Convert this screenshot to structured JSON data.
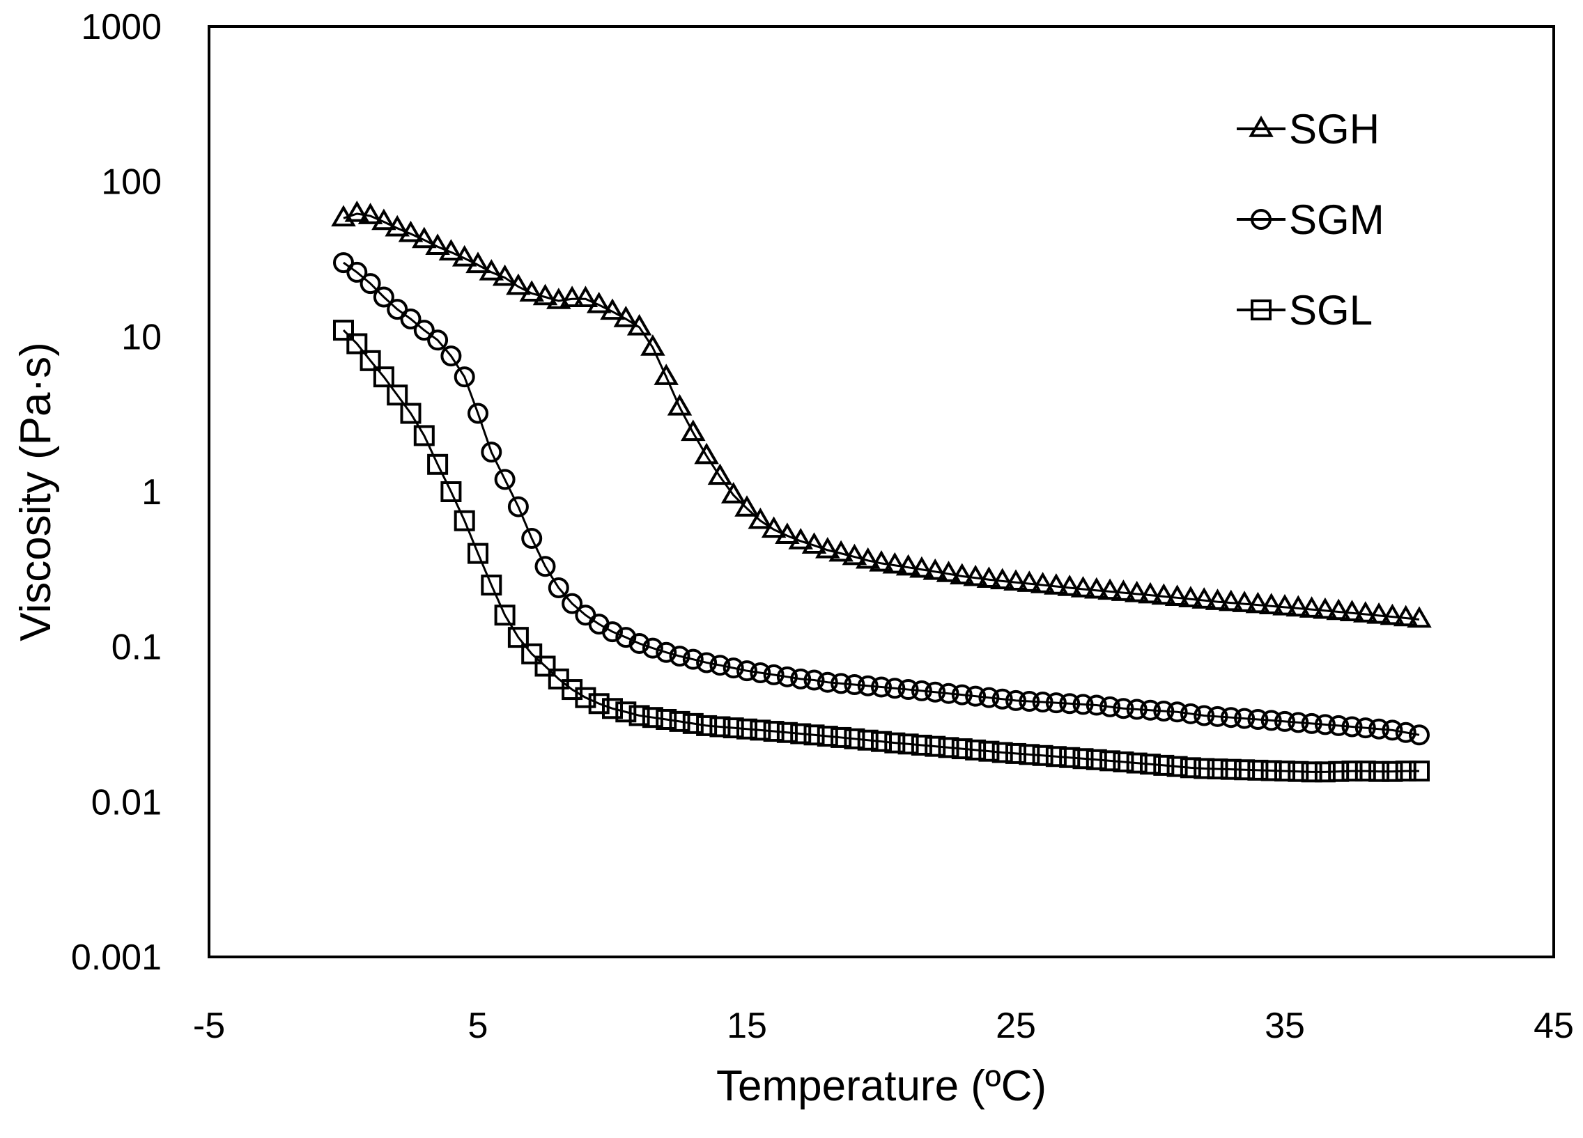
{
  "chart_data": {
    "type": "scatter",
    "title": "",
    "xlabel": "Temperature (ºC)",
    "ylabel": "Viscosity (Pa·s)",
    "xlim": [
      -5,
      45
    ],
    "ylim": [
      0.001,
      1000
    ],
    "yscale": "log",
    "xticks": [
      "-5",
      "5",
      "15",
      "25",
      "35",
      "45"
    ],
    "yticks": [
      "0.001",
      "0.01",
      "0.1",
      "1",
      "10",
      "100",
      "1000"
    ],
    "grid": false,
    "legend_position": "top-right",
    "series": [
      {
        "name": "SGH",
        "marker": "triangle",
        "x": [
          0,
          0.5,
          1,
          1.5,
          2,
          2.5,
          3,
          3.5,
          4,
          4.5,
          5,
          5.5,
          6,
          6.5,
          7,
          7.5,
          8,
          8.5,
          9,
          9.5,
          10,
          10.5,
          11,
          11.5,
          12,
          12.5,
          13,
          13.5,
          14,
          14.5,
          15,
          15.5,
          16,
          16.5,
          17,
          17.5,
          18,
          18.5,
          19,
          19.5,
          20,
          20.5,
          21,
          21.5,
          22,
          22.5,
          23,
          23.5,
          24,
          24.5,
          25,
          25.5,
          26,
          26.5,
          27,
          27.5,
          28,
          28.5,
          29,
          29.5,
          30,
          30.5,
          31,
          31.5,
          32,
          32.5,
          33,
          33.5,
          34,
          34.5,
          35,
          35.5,
          36,
          36.5,
          37,
          37.5,
          38,
          38.5,
          39,
          39.5,
          40
        ],
        "y": [
          58,
          62,
          60,
          55,
          50,
          46,
          42,
          38,
          35,
          32,
          29,
          26,
          24,
          21,
          19,
          18,
          17,
          17.5,
          17.5,
          16,
          14.5,
          13,
          11.5,
          8.5,
          5.5,
          3.5,
          2.4,
          1.7,
          1.25,
          0.95,
          0.78,
          0.65,
          0.57,
          0.52,
          0.48,
          0.45,
          0.42,
          0.4,
          0.38,
          0.36,
          0.345,
          0.335,
          0.325,
          0.315,
          0.305,
          0.295,
          0.285,
          0.278,
          0.271,
          0.265,
          0.26,
          0.255,
          0.25,
          0.245,
          0.24,
          0.235,
          0.231,
          0.227,
          0.223,
          0.219,
          0.215,
          0.211,
          0.207,
          0.203,
          0.199,
          0.195,
          0.192,
          0.189,
          0.186,
          0.183,
          0.18,
          0.177,
          0.174,
          0.171,
          0.168,
          0.165,
          0.162,
          0.159,
          0.156,
          0.153,
          0.15
        ]
      },
      {
        "name": "SGM",
        "marker": "circle",
        "x": [
          0,
          0.5,
          1,
          1.5,
          2,
          2.5,
          3,
          3.5,
          4,
          4.5,
          5,
          5.5,
          6,
          6.5,
          7,
          7.5,
          8,
          8.5,
          9,
          9.5,
          10,
          10.5,
          11,
          11.5,
          12,
          12.5,
          13,
          13.5,
          14,
          14.5,
          15,
          15.5,
          16,
          16.5,
          17,
          17.5,
          18,
          18.5,
          19,
          19.5,
          20,
          20.5,
          21,
          21.5,
          22,
          22.5,
          23,
          23.5,
          24,
          24.5,
          25,
          25.5,
          26,
          26.5,
          27,
          27.5,
          28,
          28.5,
          29,
          29.5,
          30,
          30.5,
          31,
          31.5,
          32,
          32.5,
          33,
          33.5,
          34,
          34.5,
          35,
          35.5,
          36,
          36.5,
          37,
          37.5,
          38,
          38.5,
          39,
          39.5,
          40
        ],
        "y": [
          30,
          26,
          22,
          18,
          15,
          13,
          11,
          9.5,
          7.5,
          5.5,
          3.2,
          1.8,
          1.2,
          0.8,
          0.5,
          0.33,
          0.24,
          0.19,
          0.16,
          0.14,
          0.125,
          0.115,
          0.105,
          0.098,
          0.092,
          0.087,
          0.083,
          0.079,
          0.076,
          0.073,
          0.07,
          0.068,
          0.066,
          0.064,
          0.062,
          0.061,
          0.059,
          0.058,
          0.057,
          0.056,
          0.055,
          0.054,
          0.053,
          0.052,
          0.051,
          0.05,
          0.049,
          0.048,
          0.047,
          0.046,
          0.045,
          0.0445,
          0.044,
          0.0435,
          0.043,
          0.0425,
          0.042,
          0.041,
          0.04,
          0.0395,
          0.039,
          0.0385,
          0.038,
          0.037,
          0.036,
          0.0355,
          0.035,
          0.0345,
          0.034,
          0.0335,
          0.033,
          0.0325,
          0.032,
          0.0315,
          0.031,
          0.0305,
          0.03,
          0.0295,
          0.029,
          0.028,
          0.027
        ]
      },
      {
        "name": "SGL",
        "marker": "square",
        "x": [
          0,
          0.5,
          1,
          1.5,
          2,
          2.5,
          3,
          3.5,
          4,
          4.5,
          5,
          5.5,
          6,
          6.5,
          7,
          7.5,
          8,
          8.5,
          9,
          9.5,
          10,
          10.5,
          11,
          11.5,
          12,
          12.5,
          13,
          13.5,
          14,
          14.5,
          15,
          15.5,
          16,
          16.5,
          17,
          17.5,
          18,
          18.5,
          19,
          19.5,
          20,
          20.5,
          21,
          21.5,
          22,
          22.5,
          23,
          23.5,
          24,
          24.5,
          25,
          25.5,
          26,
          26.5,
          27,
          27.5,
          28,
          28.5,
          29,
          29.5,
          30,
          30.5,
          31,
          31.5,
          32,
          32.5,
          33,
          33.5,
          34,
          34.5,
          35,
          35.5,
          36,
          36.5,
          37,
          37.5,
          38,
          38.5,
          39,
          39.5,
          40
        ],
        "y": [
          11,
          9,
          7,
          5.5,
          4.2,
          3.2,
          2.3,
          1.5,
          1.0,
          0.65,
          0.4,
          0.25,
          0.16,
          0.115,
          0.09,
          0.075,
          0.062,
          0.053,
          0.047,
          0.043,
          0.04,
          0.038,
          0.036,
          0.035,
          0.034,
          0.033,
          0.032,
          0.031,
          0.0305,
          0.03,
          0.0295,
          0.029,
          0.0285,
          0.028,
          0.0275,
          0.027,
          0.0265,
          0.026,
          0.0255,
          0.025,
          0.0245,
          0.024,
          0.0236,
          0.0232,
          0.0228,
          0.0224,
          0.022,
          0.0216,
          0.0212,
          0.0208,
          0.0205,
          0.0202,
          0.0199,
          0.0196,
          0.0193,
          0.019,
          0.0187,
          0.0184,
          0.0181,
          0.0178,
          0.0175,
          0.0172,
          0.0169,
          0.0166,
          0.0164,
          0.0163,
          0.0162,
          0.0161,
          0.016,
          0.0159,
          0.0158,
          0.0157,
          0.0156,
          0.0156,
          0.0157,
          0.0158,
          0.0158,
          0.0157,
          0.0157,
          0.0158,
          0.0158
        ]
      }
    ]
  }
}
